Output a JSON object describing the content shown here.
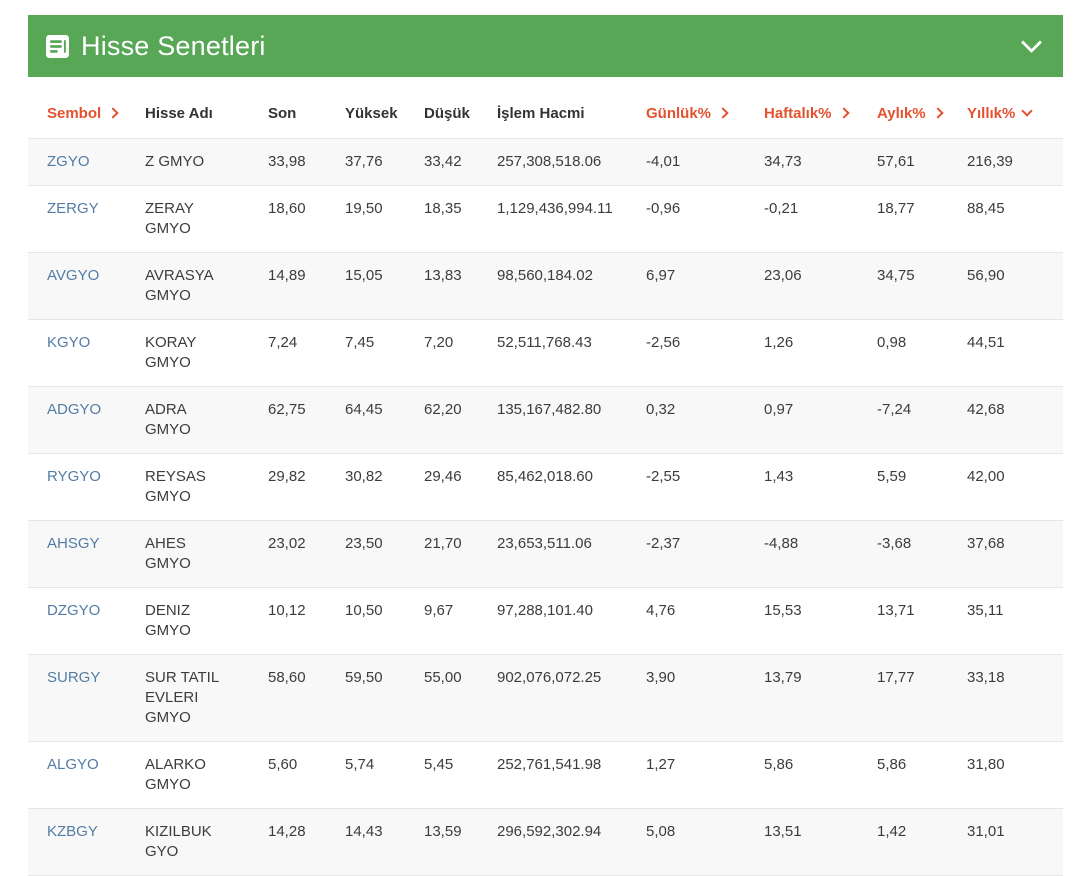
{
  "header": {
    "title": "Hisse Senetleri"
  },
  "colors": {
    "header_green": "#57a757",
    "accent_red": "#e4512f",
    "symbol_link_blue": "#537ca5",
    "row_stripe": "#f8f8f8"
  },
  "table": {
    "columns": [
      {
        "key": "symbol",
        "label": "Sembol",
        "accent": true,
        "sort": "right"
      },
      {
        "key": "name",
        "label": "Hisse Adı",
        "accent": false,
        "sort": null
      },
      {
        "key": "last",
        "label": "Son",
        "accent": false,
        "sort": null
      },
      {
        "key": "high",
        "label": "Yüksek",
        "accent": false,
        "sort": null
      },
      {
        "key": "low",
        "label": "Düşük",
        "accent": false,
        "sort": null
      },
      {
        "key": "volume",
        "label": "İşlem Hacmi",
        "accent": false,
        "sort": null
      },
      {
        "key": "daily",
        "label": "Günlük%",
        "accent": true,
        "sort": "right"
      },
      {
        "key": "weekly",
        "label": "Haftalık%",
        "accent": true,
        "sort": "right"
      },
      {
        "key": "monthly",
        "label": "Aylık%",
        "accent": true,
        "sort": "right"
      },
      {
        "key": "yearly",
        "label": "Yıllık%",
        "accent": true,
        "sort": "down"
      }
    ],
    "rows": [
      {
        "symbol": "ZGYO",
        "name": "Z GMYO",
        "last": "33,98",
        "high": "37,76",
        "low": "33,42",
        "volume": "257,308,518.06",
        "daily": "-4,01",
        "weekly": "34,73",
        "monthly": "57,61",
        "yearly": "216,39"
      },
      {
        "symbol": "ZERGY",
        "name": "ZERAY GMYO",
        "last": "18,60",
        "high": "19,50",
        "low": "18,35",
        "volume": "1,129,436,994.11",
        "daily": "-0,96",
        "weekly": "-0,21",
        "monthly": "18,77",
        "yearly": "88,45"
      },
      {
        "symbol": "AVGYO",
        "name": "AVRASYA GMYO",
        "last": "14,89",
        "high": "15,05",
        "low": "13,83",
        "volume": "98,560,184.02",
        "daily": "6,97",
        "weekly": "23,06",
        "monthly": "34,75",
        "yearly": "56,90"
      },
      {
        "symbol": "KGYO",
        "name": "KORAY GMYO",
        "last": "7,24",
        "high": "7,45",
        "low": "7,20",
        "volume": "52,511,768.43",
        "daily": "-2,56",
        "weekly": "1,26",
        "monthly": "0,98",
        "yearly": "44,51"
      },
      {
        "symbol": "ADGYO",
        "name": "ADRA GMYO",
        "last": "62,75",
        "high": "64,45",
        "low": "62,20",
        "volume": "135,167,482.80",
        "daily": "0,32",
        "weekly": "0,97",
        "monthly": "-7,24",
        "yearly": "42,68"
      },
      {
        "symbol": "RYGYO",
        "name": "REYSAS GMYO",
        "last": "29,82",
        "high": "30,82",
        "low": "29,46",
        "volume": "85,462,018.60",
        "daily": "-2,55",
        "weekly": "1,43",
        "monthly": "5,59",
        "yearly": "42,00"
      },
      {
        "symbol": "AHSGY",
        "name": "AHES GMYO",
        "last": "23,02",
        "high": "23,50",
        "low": "21,70",
        "volume": "23,653,511.06",
        "daily": "-2,37",
        "weekly": "-4,88",
        "monthly": "-3,68",
        "yearly": "37,68"
      },
      {
        "symbol": "DZGYO",
        "name": "DENIZ GMYO",
        "last": "10,12",
        "high": "10,50",
        "low": "9,67",
        "volume": "97,288,101.40",
        "daily": "4,76",
        "weekly": "15,53",
        "monthly": "13,71",
        "yearly": "35,11"
      },
      {
        "symbol": "SURGY",
        "name": "SUR TATIL EVLERI GMYO",
        "last": "58,60",
        "high": "59,50",
        "low": "55,00",
        "volume": "902,076,072.25",
        "daily": "3,90",
        "weekly": "13,79",
        "monthly": "17,77",
        "yearly": "33,18"
      },
      {
        "symbol": "ALGYO",
        "name": "ALARKO GMYO",
        "last": "5,60",
        "high": "5,74",
        "low": "5,45",
        "volume": "252,761,541.98",
        "daily": "1,27",
        "weekly": "5,86",
        "monthly": "5,86",
        "yearly": "31,80"
      },
      {
        "symbol": "KZBGY",
        "name": "KIZILBUK GYO",
        "last": "14,28",
        "high": "14,43",
        "low": "13,59",
        "volume": "296,592,302.94",
        "daily": "5,08",
        "weekly": "13,51",
        "monthly": "1,42",
        "yearly": "31,01"
      }
    ]
  }
}
